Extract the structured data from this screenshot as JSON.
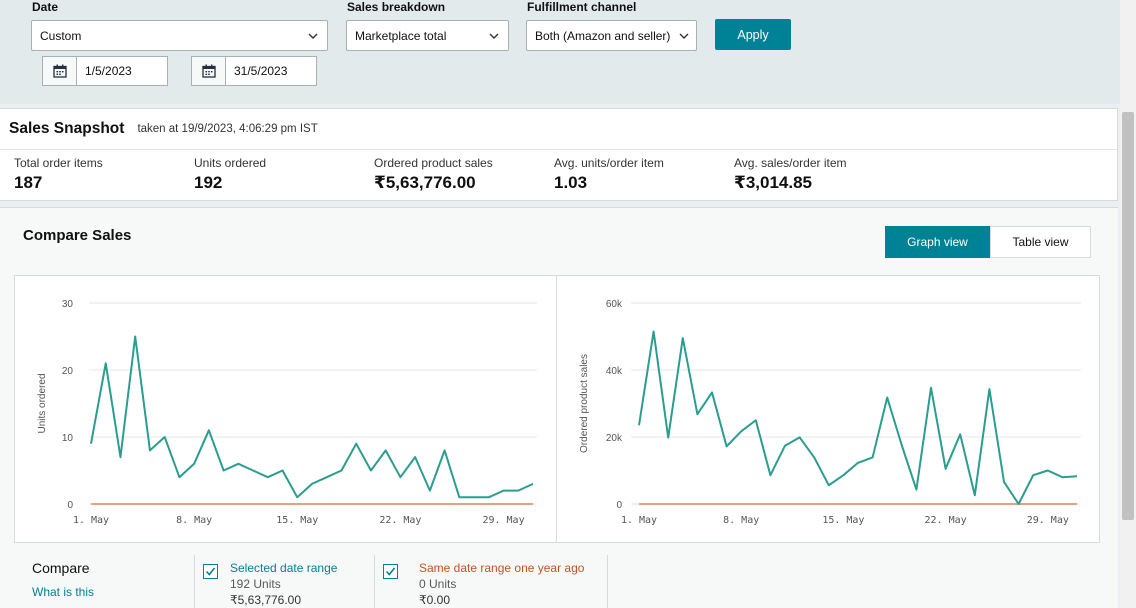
{
  "filters": {
    "date_label": "Date",
    "date_value": "Custom",
    "start_date": "1/5/2023",
    "end_date": "31/5/2023",
    "breakdown_label": "Sales breakdown",
    "breakdown_value": "Marketplace total",
    "channel_label": "Fulfillment channel",
    "channel_value": "Both (Amazon and seller)",
    "apply_label": "Apply"
  },
  "snapshot": {
    "title": "Sales Snapshot",
    "taken": "taken at 19/9/2023, 4:06:29 pm IST",
    "metrics": [
      {
        "label": "Total order items",
        "value": "187"
      },
      {
        "label": "Units ordered",
        "value": "192"
      },
      {
        "label": "Ordered product sales",
        "value": "₹5,63,776.00"
      },
      {
        "label": "Avg. units/order item",
        "value": "1.03"
      },
      {
        "label": "Avg. sales/order item",
        "value": "₹3,014.85"
      }
    ]
  },
  "compare": {
    "title": "Compare Sales",
    "graph_view_label": "Graph view",
    "table_view_label": "Table view",
    "legend_title": "Compare",
    "what_is_this": "What is this",
    "selected": {
      "label": "Selected date range",
      "units": "192 Units",
      "sales": "₹5,63,776.00"
    },
    "previous": {
      "label": "Same date range one year ago",
      "units": "0 Units",
      "sales": "₹0.00"
    }
  },
  "colors": {
    "accent": "#008296",
    "selected_series": "#2a9d8f",
    "previous_series": "#e8a082",
    "previous_label": "#c7511f"
  },
  "chart_data": [
    {
      "type": "line",
      "ylabel": "Units ordered",
      "ylim": [
        0,
        30
      ],
      "y_ticks": [
        "0",
        "10",
        "20",
        "30"
      ],
      "x_ticks": [
        "1. May",
        "8. May",
        "15. May",
        "22. May",
        "29. May"
      ],
      "x": [
        "1. May",
        "2. May",
        "3. May",
        "4. May",
        "5. May",
        "6. May",
        "7. May",
        "8. May",
        "9. May",
        "10. May",
        "11. May",
        "12. May",
        "13. May",
        "14. May",
        "15. May",
        "16. May",
        "17. May",
        "18. May",
        "19. May",
        "20. May",
        "21. May",
        "22. May",
        "23. May",
        "24. May",
        "25. May",
        "26. May",
        "27. May",
        "28. May",
        "29. May",
        "30. May",
        "31. May"
      ],
      "series": [
        {
          "values": [
            9,
            21,
            7,
            25,
            8,
            10,
            4,
            6,
            11,
            5,
            6,
            5,
            4,
            5,
            1,
            3,
            4,
            5,
            9,
            5,
            8,
            4,
            7,
            2,
            8,
            1,
            1,
            1,
            2,
            2,
            3
          ]
        },
        {
          "values": [
            0,
            0,
            0,
            0,
            0,
            0,
            0,
            0,
            0,
            0,
            0,
            0,
            0,
            0,
            0,
            0,
            0,
            0,
            0,
            0,
            0,
            0,
            0,
            0,
            0,
            0,
            0,
            0,
            0,
            0,
            0
          ]
        }
      ]
    },
    {
      "type": "line",
      "ylabel": "Ordered product sales",
      "ylim": [
        0,
        60000
      ],
      "y_ticks": [
        "0",
        "20k",
        "40k",
        "60k"
      ],
      "x_ticks": [
        "1. May",
        "8. May",
        "15. May",
        "22. May",
        "29. May"
      ],
      "x": [
        "1. May",
        "2. May",
        "3. May",
        "4. May",
        "5. May",
        "6. May",
        "7. May",
        "8. May",
        "9. May",
        "10. May",
        "11. May",
        "12. May",
        "13. May",
        "14. May",
        "15. May",
        "16. May",
        "17. May",
        "18. May",
        "19. May",
        "20. May",
        "21. May",
        "22. May",
        "23. May",
        "24. May",
        "25. May",
        "26. May",
        "27. May",
        "28. May",
        "29. May",
        "30. May",
        "31. May"
      ],
      "series": [
        {
          "values": [
            23500,
            51500,
            19800,
            49500,
            26800,
            33300,
            17200,
            21700,
            25000,
            8600,
            17400,
            19900,
            13900,
            5600,
            8600,
            12300,
            13900,
            31800,
            17500,
            4300,
            34700,
            10500,
            20800,
            2600,
            34300,
            6600,
            0,
            8600,
            10000,
            8000,
            8300
          ]
        },
        {
          "values": [
            0,
            0,
            0,
            0,
            0,
            0,
            0,
            0,
            0,
            0,
            0,
            0,
            0,
            0,
            0,
            0,
            0,
            0,
            0,
            0,
            0,
            0,
            0,
            0,
            0,
            0,
            0,
            0,
            0,
            0,
            0
          ]
        }
      ]
    }
  ]
}
